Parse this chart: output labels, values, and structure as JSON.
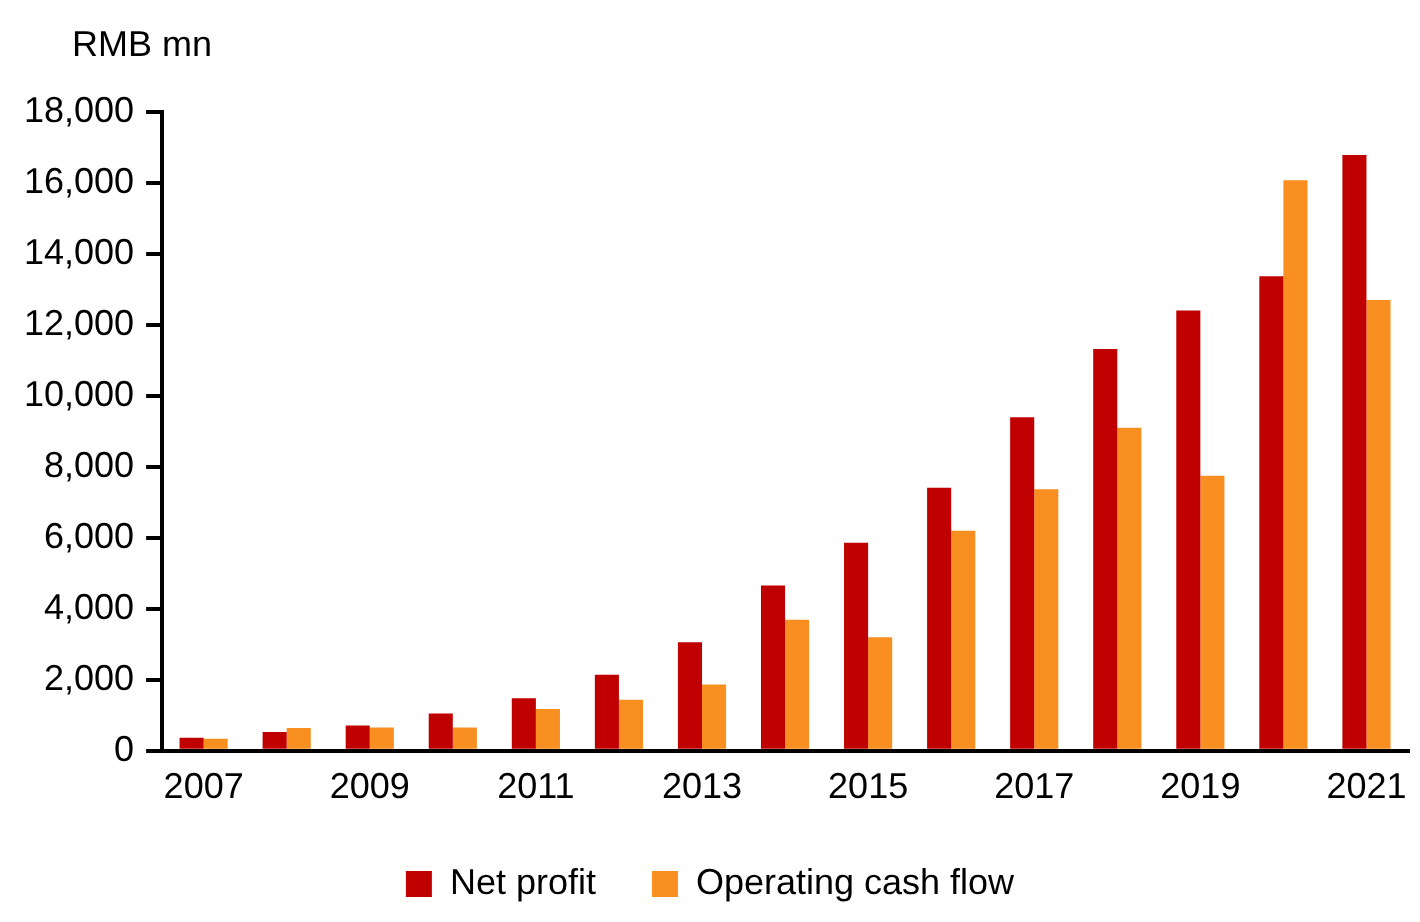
{
  "chart_data": {
    "type": "bar",
    "ylabel": "RMB mn",
    "categories": [
      "2007",
      null,
      "2009",
      null,
      "2011",
      null,
      "2013",
      null,
      "2015",
      null,
      "2017",
      null,
      "2019",
      null,
      "2021"
    ],
    "series": [
      {
        "name": "Net profit",
        "color": "#c00000",
        "values": [
          370,
          530,
          710,
          1050,
          1480,
          2140,
          3060,
          4660,
          5860,
          7410,
          9400,
          11320,
          12410,
          13370,
          16790
        ]
      },
      {
        "name": "Operating cash flow",
        "color": "#f98f20",
        "values": [
          340,
          640,
          660,
          660,
          1180,
          1440,
          1870,
          3690,
          3200,
          6200,
          7370,
          9100,
          7750,
          16080,
          12700
        ]
      }
    ],
    "ylim": [
      0,
      18000
    ],
    "yticks": [
      0,
      {
        "value": 2000,
        "label": "2,000"
      },
      {
        "value": 4000,
        "label": "4,000"
      },
      {
        "value": 6000,
        "label": "6,000"
      },
      {
        "value": 8000,
        "label": "8,000"
      },
      {
        "value": 10000,
        "label": "10,000"
      },
      {
        "value": 12000,
        "label": "12,000"
      },
      {
        "value": 14000,
        "label": "14,000"
      },
      {
        "value": 16000,
        "label": "16,000"
      },
      {
        "value": 18000,
        "label": "18,000"
      }
    ],
    "grid": false,
    "legend": "bottom"
  }
}
